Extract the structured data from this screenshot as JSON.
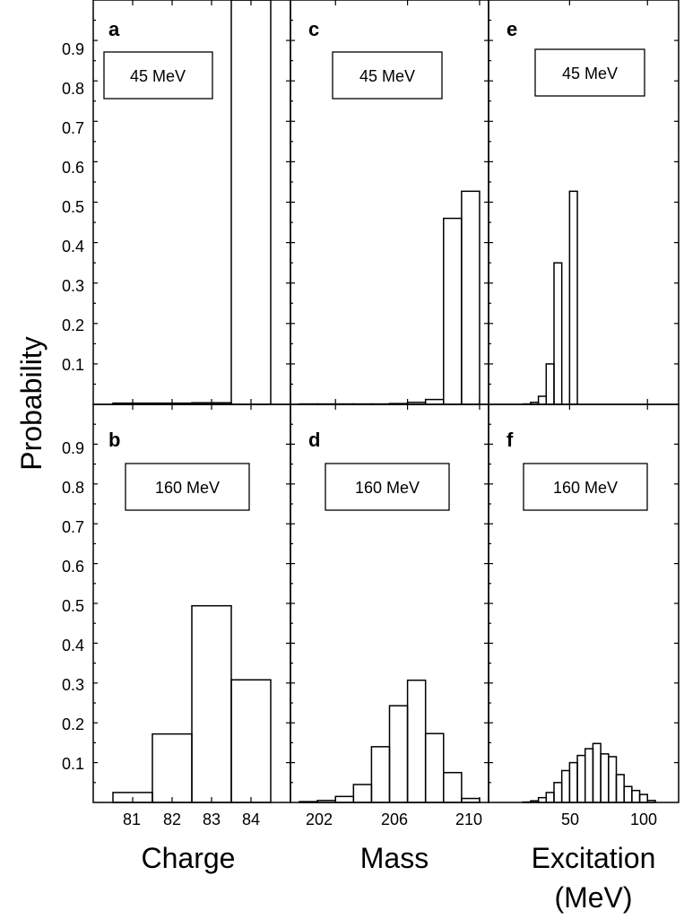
{
  "chart_data": [
    {
      "panel": "a",
      "energy": "45 MeV",
      "type": "bar",
      "x_axis": "charge",
      "bins": [
        [
          80.5,
          81.5,
          0.003
        ],
        [
          81.5,
          82.5,
          0.003
        ],
        [
          82.5,
          83.5,
          0.004
        ],
        [
          83.5,
          84.5,
          1.0
        ]
      ]
    },
    {
      "panel": "b",
      "energy": "160 MeV",
      "type": "bar",
      "x_axis": "charge",
      "bins": [
        [
          80.5,
          81.5,
          0.025
        ],
        [
          81.5,
          82.5,
          0.172
        ],
        [
          82.5,
          83.5,
          0.494
        ],
        [
          83.5,
          84.5,
          0.308
        ]
      ]
    },
    {
      "panel": "c",
      "energy": "45 MeV",
      "type": "bar",
      "x_axis": "mass",
      "bins": [
        [
          200,
          201,
          0.001
        ],
        [
          201,
          202,
          0.001
        ],
        [
          202,
          203,
          0.001
        ],
        [
          203,
          204,
          0.001
        ],
        [
          204,
          205,
          0.001
        ],
        [
          205,
          206,
          0.002
        ],
        [
          206,
          207,
          0.005
        ],
        [
          207,
          208,
          0.012
        ],
        [
          208,
          209,
          0.46
        ],
        [
          209,
          210,
          0.527
        ]
      ]
    },
    {
      "panel": "d",
      "energy": "160 MeV",
      "type": "bar",
      "x_axis": "mass",
      "bins": [
        [
          200,
          201,
          0.002
        ],
        [
          201,
          202,
          0.005
        ],
        [
          202,
          203,
          0.015
        ],
        [
          203,
          204,
          0.045
        ],
        [
          204,
          205,
          0.14
        ],
        [
          205,
          206,
          0.243
        ],
        [
          206,
          207,
          0.307
        ],
        [
          207,
          208,
          0.173
        ],
        [
          208,
          209,
          0.075
        ],
        [
          209,
          210,
          0.01
        ]
      ]
    },
    {
      "panel": "e",
      "energy": "45 MeV",
      "type": "bar",
      "x_axis": "excitation",
      "bins": [
        [
          20,
          25,
          0.001
        ],
        [
          25,
          30,
          0.005
        ],
        [
          30,
          35,
          0.02
        ],
        [
          35,
          40,
          0.1
        ],
        [
          40,
          45,
          0.35
        ],
        [
          45,
          50,
          0.0
        ],
        [
          50,
          55,
          0.527
        ]
      ]
    },
    {
      "panel": "f",
      "energy": "160 MeV",
      "type": "bar",
      "x_axis": "excitation",
      "bins": [
        [
          20,
          25,
          0.001
        ],
        [
          25,
          30,
          0.004
        ],
        [
          30,
          35,
          0.012
        ],
        [
          35,
          40,
          0.025
        ],
        [
          40,
          45,
          0.05
        ],
        [
          45,
          50,
          0.08
        ],
        [
          50,
          55,
          0.1
        ],
        [
          55,
          60,
          0.118
        ],
        [
          60,
          65,
          0.135
        ],
        [
          65,
          70,
          0.148
        ],
        [
          70,
          75,
          0.122
        ],
        [
          75,
          80,
          0.115
        ],
        [
          80,
          85,
          0.07
        ],
        [
          85,
          90,
          0.04
        ],
        [
          90,
          95,
          0.03
        ],
        [
          95,
          100,
          0.02
        ],
        [
          100,
          105,
          0.005
        ]
      ]
    }
  ],
  "axes": {
    "ylabel": "Probability",
    "yticks": [
      "0.1",
      "0.2",
      "0.3",
      "0.4",
      "0.5",
      "0.6",
      "0.7",
      "0.8",
      "0.9"
    ],
    "ylim": [
      0,
      1.0
    ],
    "charge": {
      "title": "Charge",
      "xlim": [
        80,
        85
      ],
      "ticks": [
        "81",
        "82",
        "83",
        "84"
      ]
    },
    "mass": {
      "title": "Mass",
      "xlim": [
        199.5,
        210.5
      ],
      "ticks": [
        "202",
        "206",
        "210"
      ]
    },
    "excitation": {
      "title": "Excitation",
      "subtitle": "(MeV)",
      "xlim": [
        -2,
        120
      ],
      "ticks": [
        "50",
        "100"
      ]
    }
  }
}
